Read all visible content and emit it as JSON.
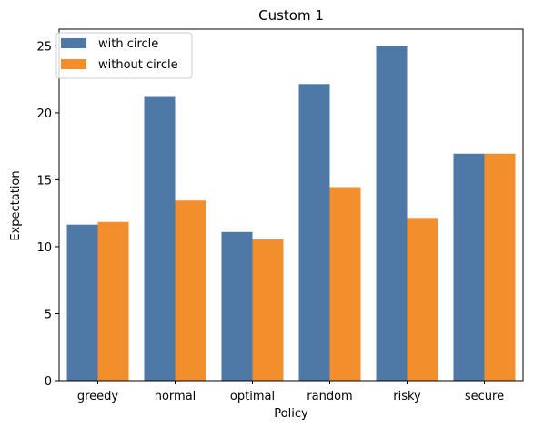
{
  "chart_data": {
    "type": "bar",
    "title": "Custom 1",
    "xlabel": "Policy",
    "ylabel": "Expectation",
    "categories": [
      "greedy",
      "normal",
      "optimal",
      "random",
      "risky",
      "secure"
    ],
    "series": [
      {
        "name": "with circle",
        "color": "#4e79a7",
        "values": [
          11.65,
          21.25,
          11.1,
          22.15,
          25.0,
          16.95
        ]
      },
      {
        "name": "without circle",
        "color": "#f28e2b",
        "values": [
          11.85,
          13.45,
          10.55,
          14.45,
          12.15,
          16.95
        ]
      }
    ],
    "ylim": [
      0,
      26.25
    ],
    "yticks": [
      0,
      5,
      10,
      15,
      20,
      25
    ],
    "grid": false,
    "legend_position": "top-left"
  }
}
